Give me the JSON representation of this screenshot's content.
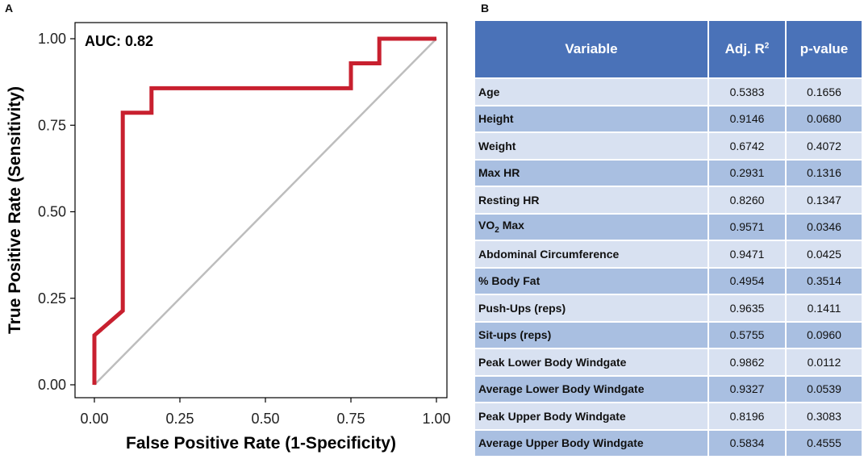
{
  "panel_a_label": "A",
  "panel_b_label": "B",
  "chart_data": {
    "type": "line",
    "title": "",
    "annotation": "AUC: 0.82",
    "xlabel": "False Positive Rate (1-Specificity)",
    "ylabel": "True Positive Rate (Sensitivity)",
    "xlim": [
      0,
      1
    ],
    "ylim": [
      0,
      1
    ],
    "x_ticks": [
      "0.00",
      "0.25",
      "0.50",
      "0.75",
      "1.00"
    ],
    "y_ticks": [
      "0.00",
      "0.25",
      "0.50",
      "0.75",
      "1.00"
    ],
    "grid": false,
    "series": [
      {
        "name": "ROC curve",
        "color": "#c8202f",
        "points": [
          [
            0,
            0
          ],
          [
            0,
            0.143
          ],
          [
            0.083,
            0.214
          ],
          [
            0.083,
            0.786
          ],
          [
            0.167,
            0.786
          ],
          [
            0.167,
            0.857
          ],
          [
            0.75,
            0.857
          ],
          [
            0.75,
            0.929
          ],
          [
            0.833,
            0.929
          ],
          [
            0.833,
            1.0
          ],
          [
            1.0,
            1.0
          ]
        ]
      },
      {
        "name": "Reference diagonal",
        "color": "#bdbdbd",
        "points": [
          [
            0,
            0
          ],
          [
            1,
            1
          ]
        ]
      }
    ]
  },
  "table": {
    "headers": {
      "variable": "Variable",
      "adj_r2": "Adj. R",
      "adj_r2_sup": "2",
      "pvalue": "p-value"
    },
    "rows": [
      {
        "variable": "Age",
        "adj_r2": "0.5383",
        "pvalue": "0.1656"
      },
      {
        "variable": "Height",
        "adj_r2": "0.9146",
        "pvalue": "0.0680"
      },
      {
        "variable": "Weight",
        "adj_r2": "0.6742",
        "pvalue": "0.4072"
      },
      {
        "variable": "Max HR",
        "adj_r2": "0.2931",
        "pvalue": "0.1316"
      },
      {
        "variable": "Resting HR",
        "adj_r2": "0.8260",
        "pvalue": "0.1347"
      },
      {
        "variable": "VO",
        "sub": "2",
        "variable_tail": "Max",
        "adj_r2": "0.9571",
        "pvalue": "0.0346"
      },
      {
        "variable": "Abdominal Circumference",
        "adj_r2": "0.9471",
        "pvalue": "0.0425"
      },
      {
        "variable": "% Body Fat",
        "adj_r2": "0.4954",
        "pvalue": "0.3514"
      },
      {
        "variable": "Push-Ups (reps)",
        "adj_r2": "0.9635",
        "pvalue": "0.1411"
      },
      {
        "variable": "Sit-ups (reps)",
        "adj_r2": "0.5755",
        "pvalue": "0.0960"
      },
      {
        "variable": "Peak Lower Body Windgate",
        "adj_r2": "0.9862",
        "pvalue": "0.0112"
      },
      {
        "variable": "Average Lower Body Windgate",
        "adj_r2": "0.9327",
        "pvalue": "0.0539"
      },
      {
        "variable": "Peak Upper Body Windgate",
        "adj_r2": "0.8196",
        "pvalue": "0.3083"
      },
      {
        "variable": "Average Upper Body Windgate",
        "adj_r2": "0.5834",
        "pvalue": "0.4555"
      }
    ]
  }
}
